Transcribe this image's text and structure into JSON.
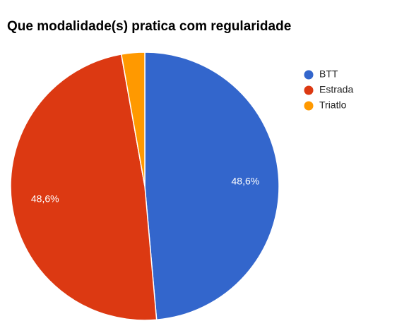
{
  "chart_data": {
    "type": "pie",
    "title": "Que modalidade(s) pratica com regularidade",
    "categories": [
      "BTT",
      "Estrada",
      "Triatlo"
    ],
    "values": [
      48.6,
      48.6,
      2.8
    ],
    "value_labels": [
      "48,6%",
      "48,6%",
      null
    ],
    "colors": [
      "#3366cc",
      "#dc3912",
      "#ff9900"
    ],
    "legend": "right"
  }
}
